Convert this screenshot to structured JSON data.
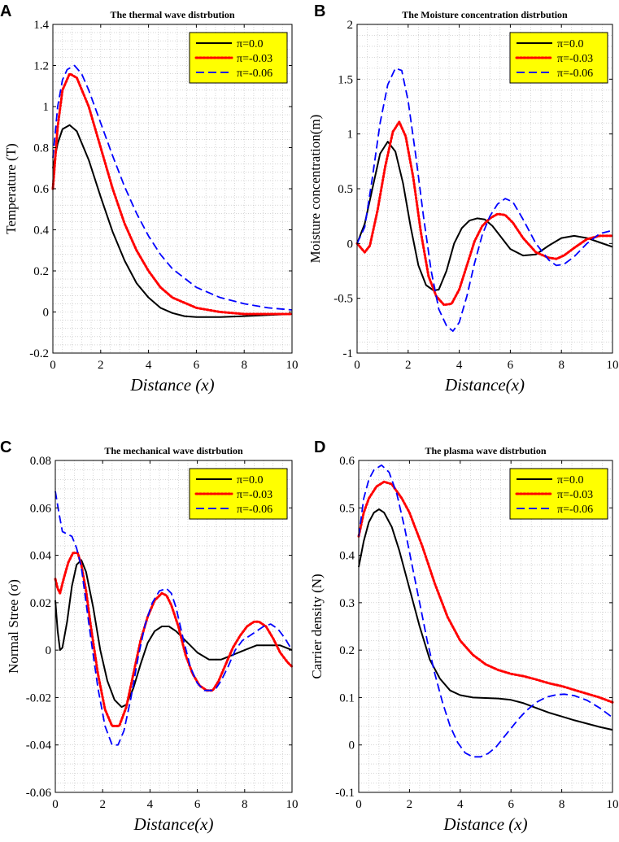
{
  "legend_labels": [
    "π=0.0",
    "π=-0.03",
    "π=-0.06"
  ],
  "colors": {
    "series": [
      "#000000",
      "#ff0000",
      "#0000ff"
    ],
    "legend_bg": "#ffff00",
    "grid": "#bdbdbd"
  },
  "chart_data": [
    {
      "type": "line",
      "panel": "A",
      "title": "The thermal wave distrbution",
      "xlabel": "Distance (x)",
      "ylabel": "Temperature (T)",
      "xlim": [
        0,
        10
      ],
      "ylim": [
        -0.2,
        1.4
      ],
      "xticks": [
        0,
        2,
        4,
        6,
        8,
        10
      ],
      "yticks": [
        -0.2,
        0,
        0.2,
        0.4,
        0.6,
        0.8,
        1,
        1.2,
        1.4
      ],
      "ytick_labels": [
        "-0.2",
        "0",
        "0.2",
        "0.4",
        "0.6",
        "0.8",
        "1",
        "1.2",
        "1.4"
      ],
      "legend": "top-right",
      "grid": true,
      "series": [
        {
          "name": "π=0.0",
          "style": "solid",
          "x": [
            0,
            0.2,
            0.4,
            0.7,
            1,
            1.5,
            2,
            2.5,
            3,
            3.5,
            4,
            4.5,
            5,
            5.5,
            6,
            7,
            8,
            9,
            10
          ],
          "values": [
            0.7,
            0.82,
            0.89,
            0.91,
            0.88,
            0.74,
            0.56,
            0.39,
            0.25,
            0.14,
            0.07,
            0.02,
            -0.005,
            -0.02,
            -0.025,
            -0.025,
            -0.02,
            -0.015,
            -0.01
          ]
        },
        {
          "name": "π=-0.03",
          "style": "dotted",
          "x": [
            0,
            0.2,
            0.4,
            0.7,
            1,
            1.5,
            2,
            2.5,
            3,
            3.5,
            4,
            4.5,
            5,
            6,
            7,
            8,
            9,
            10
          ],
          "values": [
            0.6,
            0.9,
            1.08,
            1.16,
            1.14,
            1.0,
            0.8,
            0.6,
            0.43,
            0.3,
            0.2,
            0.12,
            0.07,
            0.02,
            0.0,
            -0.01,
            -0.01,
            -0.01
          ]
        },
        {
          "name": "π=-0.06",
          "style": "dashed",
          "x": [
            0,
            0.2,
            0.4,
            0.6,
            0.9,
            1.2,
            1.5,
            2,
            2.5,
            3,
            3.5,
            4,
            4.5,
            5,
            6,
            7,
            8,
            9,
            10
          ],
          "values": [
            0.75,
            1.0,
            1.13,
            1.18,
            1.2,
            1.16,
            1.08,
            0.92,
            0.76,
            0.61,
            0.48,
            0.37,
            0.28,
            0.21,
            0.12,
            0.07,
            0.04,
            0.02,
            0.01
          ]
        }
      ]
    },
    {
      "type": "line",
      "panel": "B",
      "title": "The Moisture concentration distrbution",
      "xlabel": "Distance(x)",
      "ylabel": "Moisture concentration(m)",
      "xlim": [
        0,
        10
      ],
      "ylim": [
        -1,
        2
      ],
      "xticks": [
        0,
        2,
        4,
        6,
        8,
        10
      ],
      "yticks": [
        -1,
        -0.5,
        0,
        0.5,
        1,
        1.5,
        2
      ],
      "ytick_labels": [
        "-1",
        "-0.5",
        "0",
        "0.5",
        "1",
        "1.5",
        "2"
      ],
      "legend": "top-right",
      "grid": true,
      "series": [
        {
          "name": "π=0.0",
          "style": "solid",
          "x": [
            0,
            0.3,
            0.6,
            0.9,
            1.2,
            1.5,
            1.8,
            2.1,
            2.4,
            2.7,
            3.0,
            3.2,
            3.5,
            3.8,
            4.1,
            4.4,
            4.7,
            5.0,
            5.3,
            5.6,
            6.0,
            6.5,
            7.0,
            7.5,
            8.0,
            8.5,
            9.0,
            9.5,
            10
          ],
          "values": [
            0,
            0.18,
            0.5,
            0.82,
            0.93,
            0.84,
            0.55,
            0.15,
            -0.2,
            -0.38,
            -0.43,
            -0.42,
            -0.25,
            0.0,
            0.14,
            0.21,
            0.23,
            0.22,
            0.16,
            0.07,
            -0.05,
            -0.11,
            -0.1,
            -0.02,
            0.05,
            0.07,
            0.05,
            0.01,
            -0.03
          ]
        },
        {
          "name": "π=-0.03",
          "style": "dotted",
          "x": [
            0,
            0.3,
            0.5,
            0.8,
            1.1,
            1.4,
            1.65,
            1.9,
            2.2,
            2.5,
            2.8,
            3.1,
            3.4,
            3.7,
            4.0,
            4.3,
            4.6,
            4.9,
            5.2,
            5.5,
            5.8,
            6.1,
            6.5,
            7.0,
            7.5,
            7.8,
            8.1,
            8.5,
            9.0,
            9.5,
            10
          ],
          "values": [
            0,
            -0.08,
            -0.02,
            0.3,
            0.7,
            1.02,
            1.11,
            0.98,
            0.6,
            0.1,
            -0.3,
            -0.48,
            -0.56,
            -0.55,
            -0.42,
            -0.2,
            0.02,
            0.16,
            0.23,
            0.27,
            0.26,
            0.19,
            0.05,
            -0.08,
            -0.13,
            -0.14,
            -0.11,
            -0.04,
            0.04,
            0.07,
            0.07
          ]
        },
        {
          "name": "π=-0.06",
          "style": "dashed",
          "x": [
            0,
            0.3,
            0.6,
            0.9,
            1.2,
            1.5,
            1.75,
            2.0,
            2.3,
            2.6,
            2.9,
            3.2,
            3.5,
            3.75,
            4.0,
            4.3,
            4.6,
            4.9,
            5.2,
            5.5,
            5.8,
            6.1,
            6.5,
            7.0,
            7.5,
            7.8,
            8.1,
            8.5,
            9.0,
            9.5,
            10
          ],
          "values": [
            0,
            0.15,
            0.6,
            1.1,
            1.45,
            1.6,
            1.58,
            1.3,
            0.8,
            0.25,
            -0.25,
            -0.6,
            -0.75,
            -0.8,
            -0.72,
            -0.48,
            -0.18,
            0.08,
            0.25,
            0.36,
            0.41,
            0.38,
            0.22,
            0.0,
            -0.15,
            -0.2,
            -0.19,
            -0.12,
            0.0,
            0.09,
            0.12
          ]
        }
      ]
    },
    {
      "type": "line",
      "panel": "C",
      "title": "The mechanical wave distrbution",
      "xlabel": "Distance(x)",
      "ylabel": "Normal Stree (σ)",
      "xlim": [
        0,
        10
      ],
      "ylim": [
        -0.06,
        0.08
      ],
      "xticks": [
        0,
        2,
        4,
        6,
        8,
        10
      ],
      "yticks": [
        -0.06,
        -0.04,
        -0.02,
        0,
        0.02,
        0.04,
        0.06,
        0.08
      ],
      "ytick_labels": [
        "-0.06",
        "-0.04",
        "-0.02",
        "0",
        "0.02",
        "0.04",
        "0.06",
        "0.08"
      ],
      "legend": "top-right",
      "grid": true,
      "series": [
        {
          "name": "π=0.0",
          "style": "solid",
          "x": [
            0,
            0.1,
            0.2,
            0.3,
            0.5,
            0.7,
            0.9,
            1.1,
            1.3,
            1.6,
            1.9,
            2.2,
            2.5,
            2.8,
            3.0,
            3.3,
            3.6,
            3.9,
            4.2,
            4.5,
            4.8,
            5.1,
            5.4,
            5.7,
            6.0,
            6.5,
            7.0,
            7.5,
            8.0,
            8.5,
            9.0,
            9.5,
            10
          ],
          "values": [
            0.021,
            0.008,
            0.0,
            0.001,
            0.012,
            0.027,
            0.036,
            0.038,
            0.033,
            0.018,
            0.0,
            -0.013,
            -0.021,
            -0.024,
            -0.023,
            -0.016,
            -0.006,
            0.003,
            0.008,
            0.01,
            0.01,
            0.008,
            0.005,
            0.002,
            -0.001,
            -0.004,
            -0.004,
            -0.002,
            0.0,
            0.002,
            0.002,
            0.002,
            0.0
          ]
        },
        {
          "name": "π=-0.03",
          "style": "dotted",
          "x": [
            0,
            0.1,
            0.2,
            0.35,
            0.55,
            0.75,
            0.95,
            1.1,
            1.3,
            1.5,
            1.8,
            2.1,
            2.4,
            2.7,
            3.0,
            3.3,
            3.6,
            3.9,
            4.2,
            4.5,
            4.7,
            4.9,
            5.2,
            5.5,
            5.8,
            6.1,
            6.4,
            6.65,
            6.9,
            7.2,
            7.5,
            7.8,
            8.1,
            8.4,
            8.6,
            8.9,
            9.2,
            9.5,
            9.8,
            10
          ],
          "values": [
            0.03,
            0.026,
            0.024,
            0.03,
            0.037,
            0.041,
            0.041,
            0.036,
            0.025,
            0.01,
            -0.01,
            -0.025,
            -0.032,
            -0.032,
            -0.024,
            -0.01,
            0.004,
            0.014,
            0.021,
            0.024,
            0.023,
            0.019,
            0.01,
            -0.002,
            -0.01,
            -0.015,
            -0.017,
            -0.017,
            -0.013,
            -0.006,
            0.001,
            0.006,
            0.01,
            0.012,
            0.012,
            0.01,
            0.005,
            -0.001,
            -0.005,
            -0.007
          ]
        },
        {
          "name": "π=-0.06",
          "style": "dashed",
          "x": [
            0,
            0.15,
            0.3,
            0.5,
            0.7,
            0.9,
            1.1,
            1.3,
            1.5,
            1.8,
            2.1,
            2.4,
            2.65,
            2.9,
            3.2,
            3.5,
            3.8,
            4.1,
            4.4,
            4.7,
            4.9,
            5.1,
            5.4,
            5.7,
            6.0,
            6.3,
            6.6,
            6.8,
            7.0,
            7.3,
            7.6,
            7.9,
            8.2,
            8.5,
            8.8,
            9.1,
            9.4,
            9.7,
            10
          ],
          "values": [
            0.067,
            0.058,
            0.05,
            0.049,
            0.048,
            0.043,
            0.035,
            0.02,
            0.005,
            -0.016,
            -0.032,
            -0.04,
            -0.04,
            -0.034,
            -0.02,
            -0.003,
            0.011,
            0.02,
            0.025,
            0.026,
            0.024,
            0.018,
            0.005,
            -0.007,
            -0.014,
            -0.017,
            -0.017,
            -0.016,
            -0.013,
            -0.007,
            0.0,
            0.004,
            0.006,
            0.008,
            0.01,
            0.011,
            0.009,
            0.005,
            0.0
          ]
        }
      ]
    },
    {
      "type": "line",
      "panel": "D",
      "title": "The plasma wave distrbution",
      "xlabel": "Distance (x)",
      "ylabel": "Carrier density (N)",
      "xlim": [
        0,
        10
      ],
      "ylim": [
        -0.1,
        0.6
      ],
      "xticks": [
        0,
        2,
        4,
        6,
        8,
        10
      ],
      "yticks": [
        -0.1,
        0,
        0.1,
        0.2,
        0.3,
        0.4,
        0.5,
        0.6
      ],
      "ytick_labels": [
        "-0.1",
        "0",
        "0.1",
        "0.2",
        "0.3",
        "0.4",
        "0.5",
        "0.6"
      ],
      "legend": "top-right",
      "grid": true,
      "series": [
        {
          "name": "π=0.0",
          "style": "solid",
          "x": [
            0,
            0.2,
            0.4,
            0.6,
            0.8,
            1.0,
            1.3,
            1.6,
            2.0,
            2.4,
            2.8,
            3.2,
            3.6,
            4.0,
            4.5,
            5.0,
            5.5,
            6.0,
            6.5,
            7.0,
            7.5,
            8.0,
            8.5,
            9.0,
            9.5,
            10
          ],
          "values": [
            0.375,
            0.43,
            0.47,
            0.49,
            0.497,
            0.49,
            0.46,
            0.41,
            0.33,
            0.25,
            0.18,
            0.14,
            0.115,
            0.105,
            0.1,
            0.099,
            0.098,
            0.095,
            0.088,
            0.078,
            0.068,
            0.06,
            0.052,
            0.045,
            0.038,
            0.032
          ]
        },
        {
          "name": "π=-0.03",
          "style": "dotted",
          "x": [
            0,
            0.2,
            0.4,
            0.7,
            1.0,
            1.3,
            1.7,
            2.0,
            2.5,
            3.0,
            3.5,
            4.0,
            4.5,
            5.0,
            5.5,
            6.0,
            6.5,
            7.0,
            7.5,
            8.0,
            8.5,
            9.0,
            9.5,
            10
          ],
          "values": [
            0.44,
            0.49,
            0.52,
            0.545,
            0.555,
            0.55,
            0.52,
            0.49,
            0.42,
            0.34,
            0.27,
            0.22,
            0.19,
            0.17,
            0.158,
            0.15,
            0.145,
            0.138,
            0.13,
            0.124,
            0.116,
            0.108,
            0.1,
            0.09
          ]
        },
        {
          "name": "π=-0.06",
          "style": "dashed",
          "x": [
            0,
            0.2,
            0.4,
            0.6,
            0.9,
            1.2,
            1.5,
            1.8,
            2.1,
            2.4,
            2.7,
            3.0,
            3.3,
            3.6,
            3.9,
            4.2,
            4.5,
            4.8,
            5.1,
            5.4,
            5.7,
            6.0,
            6.3,
            6.6,
            7.0,
            7.4,
            7.8,
            8.1,
            8.5,
            9.0,
            9.5,
            10
          ],
          "values": [
            0.44,
            0.52,
            0.56,
            0.58,
            0.59,
            0.575,
            0.53,
            0.46,
            0.38,
            0.3,
            0.22,
            0.15,
            0.09,
            0.04,
            0.005,
            -0.017,
            -0.025,
            -0.025,
            -0.018,
            -0.005,
            0.015,
            0.035,
            0.055,
            0.072,
            0.09,
            0.101,
            0.106,
            0.107,
            0.104,
            0.094,
            0.078,
            0.058
          ]
        }
      ]
    }
  ]
}
